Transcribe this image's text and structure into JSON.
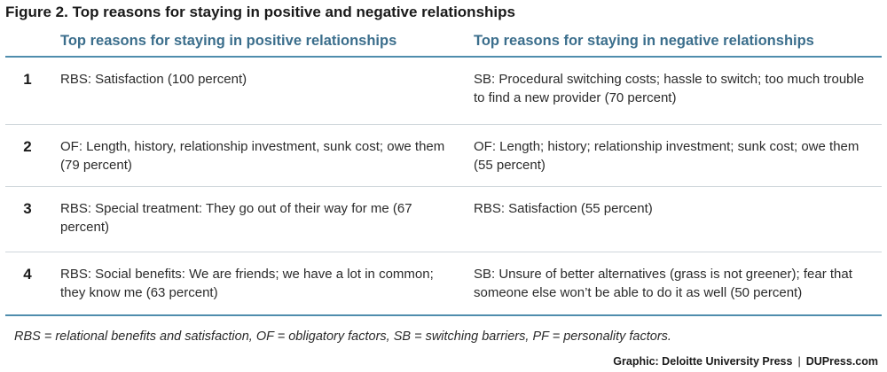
{
  "figure_title": "Figure 2. Top reasons for staying in positive and negative relationships",
  "columns": {
    "positive": "Top reasons for staying in positive relationships",
    "negative": "Top reasons for staying in negative relationships"
  },
  "rows": [
    {
      "rank": "1",
      "positive": "RBS: Satisfaction (100 percent)",
      "negative": "SB: Procedural switching costs; hassle to switch; too much trouble to find a new provider (70 percent)"
    },
    {
      "rank": "2",
      "positive": "OF: Length, history, relationship investment, sunk cost; owe them (79 percent)",
      "negative": "OF: Length; history; relationship investment; sunk cost; owe them (55 percent)"
    },
    {
      "rank": "3",
      "positive": "RBS: Special treatment: They go out of their way for me (67 percent)",
      "negative": "RBS: Satisfaction (55 percent)"
    },
    {
      "rank": "4",
      "positive": "RBS: Social benefits: We are friends; we have a lot in common; they know me (63 percent)",
      "negative": "SB: Unsure of better alternatives (grass is not greener); fear that someone else won’t be able to do it as well (50 percent)"
    }
  ],
  "footnote": "RBS = relational benefits and satisfaction, OF = obligatory factors, SB = switching barriers, PF = personality factors.",
  "credit": {
    "source": "Graphic: Deloitte University Press",
    "separator": "|",
    "site": "DUPress.com"
  }
}
